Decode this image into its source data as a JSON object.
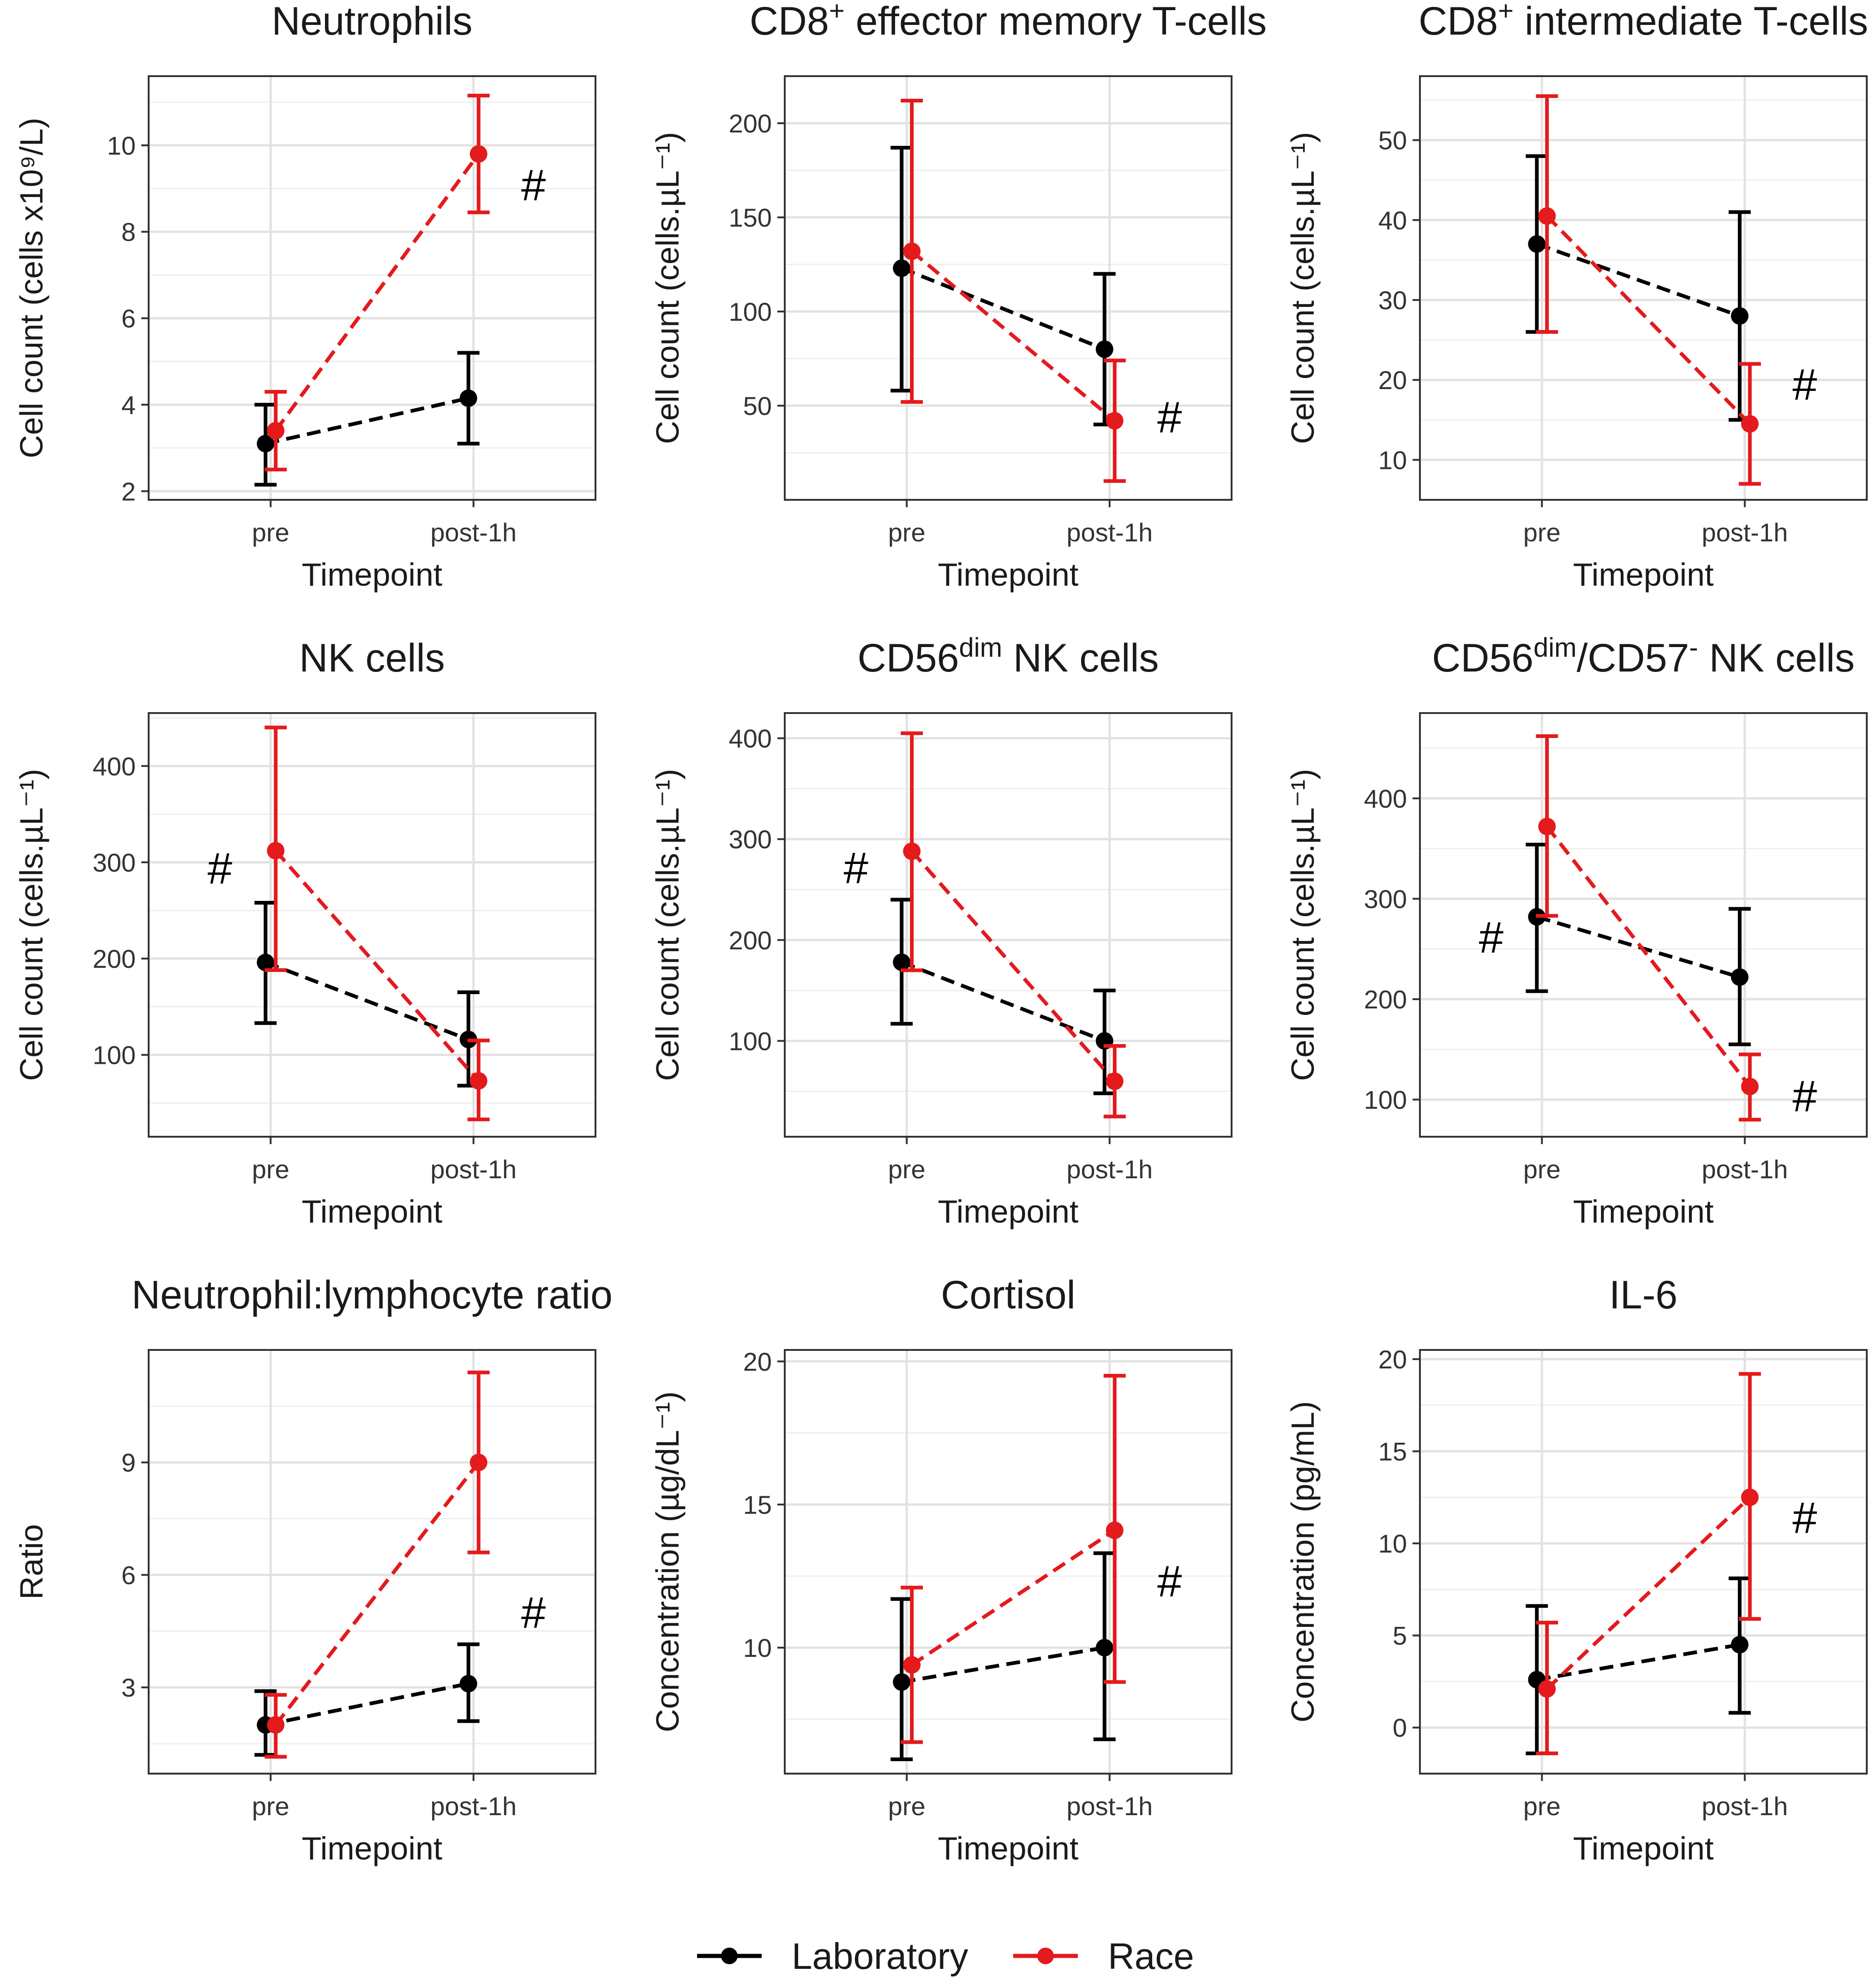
{
  "figure": {
    "x_axis_label": "Timepoint",
    "legend": [
      {
        "name": "Laboratory",
        "color": "#000000"
      },
      {
        "name": "Race",
        "color": "#e41a1c"
      }
    ]
  },
  "chart_data": [
    {
      "type": "line",
      "title": "Neutrophils",
      "title_parts": [
        {
          "text": "Neutrophils"
        }
      ],
      "xlabel": "Timepoint",
      "ylabel": "Cell count (cells x10⁹/L)",
      "categories": [
        "pre",
        "post-1h"
      ],
      "ylim": [
        1.8,
        11.6
      ],
      "yticks": [
        2,
        4,
        6,
        8,
        10
      ],
      "series": [
        {
          "name": "Laboratory",
          "color": "#000000",
          "values": [
            3.1,
            4.15
          ],
          "lower": [
            2.15,
            3.1
          ],
          "upper": [
            4.0,
            5.2
          ]
        },
        {
          "name": "Race",
          "color": "#e41a1c",
          "values": [
            3.4,
            9.8
          ],
          "lower": [
            2.5,
            8.45
          ],
          "upper": [
            4.3,
            11.15
          ]
        }
      ],
      "annotations": [
        {
          "text": "#",
          "category": 1,
          "value": 9.0
        }
      ]
    },
    {
      "type": "line",
      "title": "CD8+ effector memory T-cells",
      "title_parts": [
        {
          "text": "CD8"
        },
        {
          "text": "+",
          "sup": true
        },
        {
          "text": " effector memory T-cells"
        }
      ],
      "xlabel": "Timepoint",
      "ylabel": "Cell count (cells.µL⁻¹)",
      "categories": [
        "pre",
        "post-1h"
      ],
      "ylim": [
        0,
        225
      ],
      "yticks": [
        50,
        100,
        150,
        200
      ],
      "series": [
        {
          "name": "Laboratory",
          "color": "#000000",
          "values": [
            123,
            80
          ],
          "lower": [
            58,
            40
          ],
          "upper": [
            187,
            120
          ]
        },
        {
          "name": "Race",
          "color": "#e41a1c",
          "values": [
            132,
            42
          ],
          "lower": [
            52,
            10
          ],
          "upper": [
            212,
            74
          ]
        }
      ],
      "annotations": [
        {
          "text": "#",
          "category": 1,
          "value": 42
        }
      ]
    },
    {
      "type": "line",
      "title": "CD8+ intermediate T-cells",
      "title_parts": [
        {
          "text": "CD8"
        },
        {
          "text": "+",
          "sup": true
        },
        {
          "text": " intermediate T-cells"
        }
      ],
      "xlabel": "Timepoint",
      "ylabel": "Cell count (cells.µL⁻¹)",
      "categories": [
        "pre",
        "post-1h"
      ],
      "ylim": [
        5,
        58
      ],
      "yticks": [
        10,
        20,
        30,
        40,
        50
      ],
      "series": [
        {
          "name": "Laboratory",
          "color": "#000000",
          "values": [
            37,
            28
          ],
          "lower": [
            26,
            15
          ],
          "upper": [
            48,
            41
          ]
        },
        {
          "name": "Race",
          "color": "#e41a1c",
          "values": [
            40.5,
            14.5
          ],
          "lower": [
            26,
            7
          ],
          "upper": [
            55.5,
            22
          ]
        }
      ],
      "annotations": [
        {
          "text": "#",
          "category": 1,
          "value": 19
        }
      ]
    },
    {
      "type": "line",
      "title": "NK cells",
      "title_parts": [
        {
          "text": "NK cells"
        }
      ],
      "xlabel": "Timepoint",
      "ylabel": "Cell count (cells.µL⁻¹)",
      "categories": [
        "pre",
        "post-1h"
      ],
      "ylim": [
        15,
        455
      ],
      "yticks": [
        100,
        200,
        300,
        400
      ],
      "series": [
        {
          "name": "Laboratory",
          "color": "#000000",
          "values": [
            196,
            116
          ],
          "lower": [
            133,
            68
          ],
          "upper": [
            258,
            165
          ]
        },
        {
          "name": "Race",
          "color": "#e41a1c",
          "values": [
            312,
            73
          ],
          "lower": [
            188,
            33
          ],
          "upper": [
            440,
            115
          ]
        }
      ],
      "annotations": [
        {
          "text": "#",
          "category": 0,
          "value": 290
        }
      ]
    },
    {
      "type": "line",
      "title": "CD56dim NK cells",
      "title_parts": [
        {
          "text": "CD56"
        },
        {
          "text": "dim",
          "sup": true
        },
        {
          "text": " NK cells"
        }
      ],
      "xlabel": "Timepoint",
      "ylabel": "Cell count (cells.µL⁻¹)",
      "categories": [
        "pre",
        "post-1h"
      ],
      "ylim": [
        5,
        425
      ],
      "yticks": [
        100,
        200,
        300,
        400
      ],
      "series": [
        {
          "name": "Laboratory",
          "color": "#000000",
          "values": [
            178,
            100
          ],
          "lower": [
            117,
            48
          ],
          "upper": [
            240,
            150
          ]
        },
        {
          "name": "Race",
          "color": "#e41a1c",
          "values": [
            288,
            60
          ],
          "lower": [
            170,
            25
          ],
          "upper": [
            405,
            95
          ]
        }
      ],
      "annotations": [
        {
          "text": "#",
          "category": 0,
          "value": 268
        }
      ]
    },
    {
      "type": "line",
      "title": "CD56dim/CD57- NK cells",
      "title_parts": [
        {
          "text": "CD56"
        },
        {
          "text": "dim",
          "sup": true
        },
        {
          "text": "/CD57"
        },
        {
          "text": "-",
          "sup": true
        },
        {
          "text": " NK cells"
        }
      ],
      "xlabel": "Timepoint",
      "ylabel": "Cell count (cells.µL⁻¹)",
      "categories": [
        "pre",
        "post-1h"
      ],
      "ylim": [
        63,
        485
      ],
      "yticks": [
        100,
        200,
        300,
        400
      ],
      "series": [
        {
          "name": "Laboratory",
          "color": "#000000",
          "values": [
            282,
            222
          ],
          "lower": [
            208,
            155
          ],
          "upper": [
            354,
            290
          ]
        },
        {
          "name": "Race",
          "color": "#e41a1c",
          "values": [
            372,
            113
          ],
          "lower": [
            283,
            80
          ],
          "upper": [
            462,
            145
          ]
        }
      ],
      "annotations": [
        {
          "text": "#",
          "category": 0,
          "value": 258
        },
        {
          "text": "#",
          "category": 1,
          "value": 100
        }
      ]
    },
    {
      "type": "line",
      "title": "Neutrophil:lymphocyte ratio",
      "title_parts": [
        {
          "text": "Neutrophil:lymphocyte ratio"
        }
      ],
      "xlabel": "Timepoint",
      "ylabel": "Ratio",
      "categories": [
        "pre",
        "post-1h"
      ],
      "ylim": [
        0.7,
        12.0
      ],
      "yticks": [
        3,
        6,
        9
      ],
      "series": [
        {
          "name": "Laboratory",
          "color": "#000000",
          "values": [
            2.0,
            3.1
          ],
          "lower": [
            1.2,
            2.1
          ],
          "upper": [
            2.9,
            4.15
          ]
        },
        {
          "name": "Race",
          "color": "#e41a1c",
          "values": [
            2.0,
            9.0
          ],
          "lower": [
            1.15,
            6.6
          ],
          "upper": [
            2.8,
            11.4
          ]
        }
      ],
      "annotations": [
        {
          "text": "#",
          "category": 1,
          "value": 4.9
        }
      ]
    },
    {
      "type": "line",
      "title": "Cortisol",
      "title_parts": [
        {
          "text": "Cortisol"
        }
      ],
      "xlabel": "Timepoint",
      "ylabel": "Concentration (µg/dL⁻¹)",
      "categories": [
        "pre",
        "post-1h"
      ],
      "ylim": [
        5.6,
        20.4
      ],
      "yticks": [
        10,
        15,
        20
      ],
      "series": [
        {
          "name": "Laboratory",
          "color": "#000000",
          "values": [
            8.8,
            10.0
          ],
          "lower": [
            6.1,
            6.8
          ],
          "upper": [
            11.7,
            13.3
          ]
        },
        {
          "name": "Race",
          "color": "#e41a1c",
          "values": [
            9.4,
            14.1
          ],
          "lower": [
            6.7,
            8.8
          ],
          "upper": [
            12.1,
            19.5
          ]
        }
      ],
      "annotations": [
        {
          "text": "#",
          "category": 1,
          "value": 12.2
        }
      ]
    },
    {
      "type": "line",
      "title": "IL-6",
      "title_parts": [
        {
          "text": "IL-6"
        }
      ],
      "xlabel": "Timepoint",
      "ylabel": "Concentration (pg/mL)",
      "categories": [
        "pre",
        "post-1h"
      ],
      "ylim": [
        -2.5,
        20.5
      ],
      "yticks": [
        0,
        5,
        10,
        15,
        20
      ],
      "series": [
        {
          "name": "Laboratory",
          "color": "#000000",
          "values": [
            2.6,
            4.5
          ],
          "lower": [
            -1.4,
            0.8
          ],
          "upper": [
            6.6,
            8.1
          ]
        },
        {
          "name": "Race",
          "color": "#e41a1c",
          "values": [
            2.1,
            12.5
          ],
          "lower": [
            -1.4,
            5.9
          ],
          "upper": [
            5.7,
            19.2
          ]
        }
      ],
      "annotations": [
        {
          "text": "#",
          "category": 1,
          "value": 11.2
        }
      ]
    }
  ]
}
